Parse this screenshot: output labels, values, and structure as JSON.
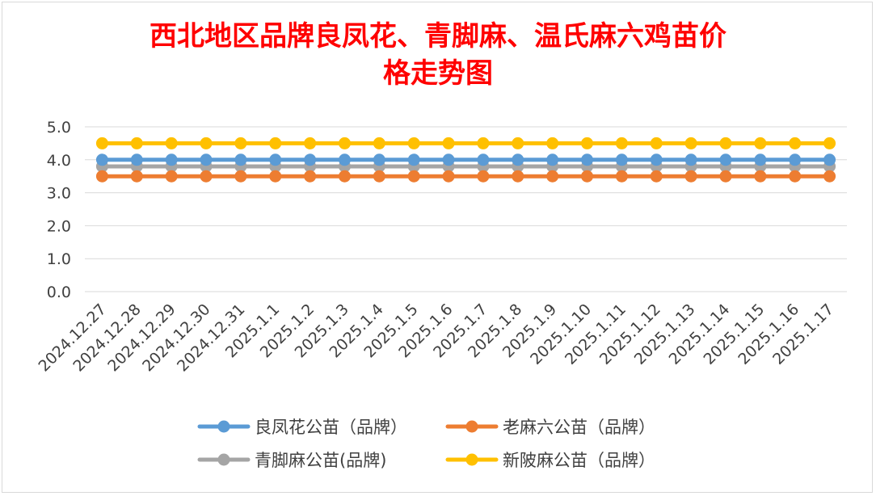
{
  "chart_data": {
    "type": "line",
    "title_lines": [
      "西北地区品牌良凤花、青脚麻、温氏麻六鸡苗价",
      "格走势图"
    ],
    "categories": [
      "2024.12.27",
      "2024.12.28",
      "2024.12.29",
      "2024.12.30",
      "2024.12.31",
      "2025.1.1",
      "2025.1.2",
      "2025.1.3",
      "2025.1.4",
      "2025.1.5",
      "2025.1.6",
      "2025.1.7",
      "2025.1.8",
      "2025.1.9",
      "2025.1.10",
      "2025.1.11",
      "2025.1.12",
      "2025.1.13",
      "2025.1.14",
      "2025.1.15",
      "2025.1.16",
      "2025.1.17"
    ],
    "y_ticks": [
      "0.0",
      "1.0",
      "2.0",
      "3.0",
      "4.0",
      "5.0"
    ],
    "ylim": [
      0,
      5
    ],
    "grid": true,
    "legend_position": "bottom",
    "series": [
      {
        "name": "良凤花公苗（品牌）",
        "color": "#5b9bd5",
        "values": [
          4,
          4,
          4,
          4,
          4,
          4,
          4,
          4,
          4,
          4,
          4,
          4,
          4,
          4,
          4,
          4,
          4,
          4,
          4,
          4,
          4,
          4
        ]
      },
      {
        "name": "老麻六公苗（品牌）",
        "color": "#ed7d31",
        "values": [
          3.5,
          3.5,
          3.5,
          3.5,
          3.5,
          3.5,
          3.5,
          3.5,
          3.5,
          3.5,
          3.5,
          3.5,
          3.5,
          3.5,
          3.5,
          3.5,
          3.5,
          3.5,
          3.5,
          3.5,
          3.5,
          3.5
        ]
      },
      {
        "name": "青脚麻公苗(品牌)",
        "color": "#a5a5a5",
        "values": [
          3.8,
          3.8,
          3.8,
          3.8,
          3.8,
          3.8,
          3.8,
          3.8,
          3.8,
          3.8,
          3.8,
          3.8,
          3.8,
          3.8,
          3.8,
          3.8,
          3.8,
          3.8,
          3.8,
          3.8,
          3.8,
          3.8
        ]
      },
      {
        "name": "新陂麻公苗（品牌）",
        "color": "#ffc000",
        "values": [
          4.5,
          4.5,
          4.5,
          4.5,
          4.5,
          4.5,
          4.5,
          4.5,
          4.5,
          4.5,
          4.5,
          4.5,
          4.5,
          4.5,
          4.5,
          4.5,
          4.5,
          4.5,
          4.5,
          4.5,
          4.5,
          4.5
        ]
      }
    ]
  }
}
